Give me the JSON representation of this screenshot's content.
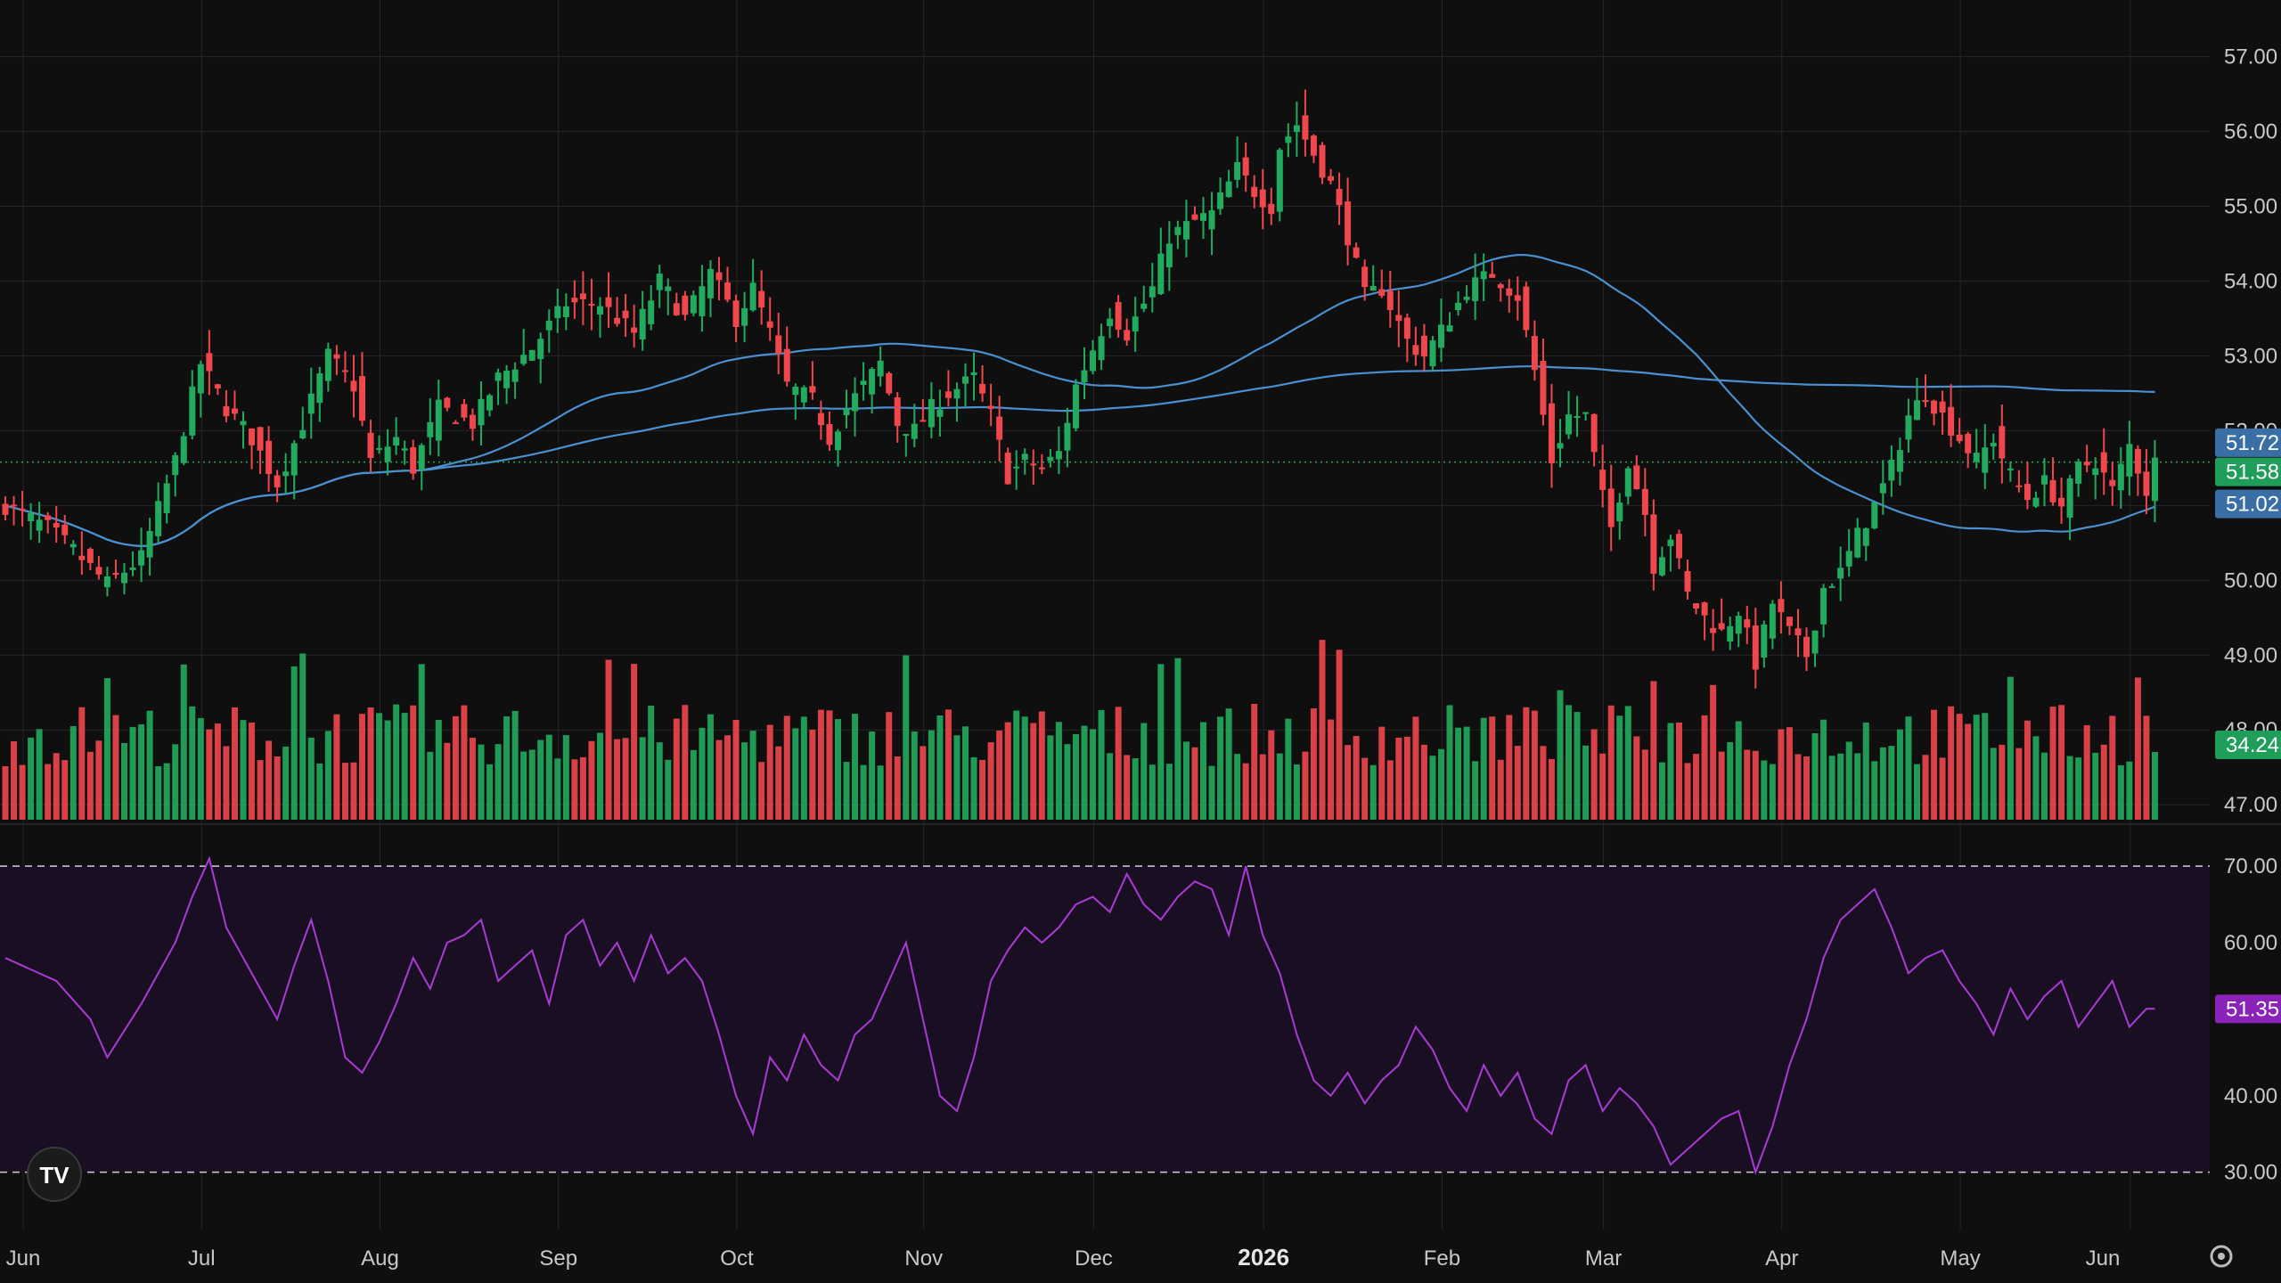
{
  "app": {
    "logo_text": "TV"
  },
  "chart_data": [
    {
      "type": "candlestick",
      "title": "",
      "ylim": [
        46.8,
        57.4
      ],
      "y_ticks": [
        "57.00",
        "56.00",
        "55.00",
        "54.00",
        "53.00",
        "52.00",
        "51.00",
        "50.00",
        "49.00",
        "48.00",
        "47.00"
      ],
      "x_ticks": [
        "Jun",
        "Jul",
        "Aug",
        "Sep",
        "Oct",
        "Nov",
        "Dec",
        "2026",
        "Feb",
        "Mar",
        "Apr",
        "May",
        "Jun"
      ],
      "bold_x_tick": "2026",
      "price_path": [
        [
          0,
          51.0
        ],
        [
          5,
          50.7
        ],
        [
          8,
          50.4
        ],
        [
          12,
          49.95
        ],
        [
          16,
          50.3
        ],
        [
          20,
          51.6
        ],
        [
          23,
          52.9
        ],
        [
          26,
          52.3
        ],
        [
          29,
          51.9
        ],
        [
          32,
          51.3
        ],
        [
          35,
          52.1
        ],
        [
          38,
          53.0
        ],
        [
          41,
          52.6
        ],
        [
          43,
          51.6
        ],
        [
          46,
          51.9
        ],
        [
          48,
          51.5
        ],
        [
          51,
          52.3
        ],
        [
          55,
          52.1
        ],
        [
          58,
          52.7
        ],
        [
          62,
          53.1
        ],
        [
          66,
          53.7
        ],
        [
          70,
          53.7
        ],
        [
          74,
          53.3
        ],
        [
          77,
          54.0
        ],
        [
          80,
          53.5
        ],
        [
          83,
          54.1
        ],
        [
          86,
          53.5
        ],
        [
          88,
          53.9
        ],
        [
          90,
          53.3
        ],
        [
          92,
          52.6
        ],
        [
          95,
          52.4
        ],
        [
          97,
          51.9
        ],
        [
          99,
          52.3
        ],
        [
          101,
          52.6
        ],
        [
          103,
          52.9
        ],
        [
          105,
          52.1
        ],
        [
          107,
          52.0
        ],
        [
          109,
          52.3
        ],
        [
          111,
          52.5
        ],
        [
          114,
          52.7
        ],
        [
          116,
          52.2
        ],
        [
          118,
          51.4
        ],
        [
          120,
          51.6
        ],
        [
          122,
          51.5
        ],
        [
          124,
          51.7
        ],
        [
          126,
          52.6
        ],
        [
          128,
          53.1
        ],
        [
          130,
          53.6
        ],
        [
          132,
          53.3
        ],
        [
          135,
          53.9
        ],
        [
          137,
          54.6
        ],
        [
          140,
          54.8
        ],
        [
          142,
          54.9
        ],
        [
          145,
          55.5
        ],
        [
          147,
          55.2
        ],
        [
          149,
          55.0
        ],
        [
          150,
          55.8
        ],
        [
          152,
          56.1
        ],
        [
          154,
          55.7
        ],
        [
          156,
          55.3
        ],
        [
          158,
          54.6
        ],
        [
          160,
          53.8
        ],
        [
          162,
          53.9
        ],
        [
          165,
          53.2
        ],
        [
          167,
          53.0
        ],
        [
          170,
          53.5
        ],
        [
          172,
          53.9
        ],
        [
          175,
          54.1
        ],
        [
          178,
          53.8
        ],
        [
          180,
          52.8
        ],
        [
          182,
          51.6
        ],
        [
          184,
          52.2
        ],
        [
          186,
          52.2
        ],
        [
          188,
          51.1
        ],
        [
          189,
          50.7
        ],
        [
          191,
          51.6
        ],
        [
          193,
          50.9
        ],
        [
          194,
          50.2
        ],
        [
          196,
          50.6
        ],
        [
          198,
          49.8
        ],
        [
          200,
          49.5
        ],
        [
          202,
          49.3
        ],
        [
          204,
          49.6
        ],
        [
          206,
          48.9
        ],
        [
          208,
          49.7
        ],
        [
          210,
          49.3
        ],
        [
          212,
          49.0
        ],
        [
          214,
          49.9
        ],
        [
          216,
          50.1
        ],
        [
          218,
          50.6
        ],
        [
          220,
          51.0
        ],
        [
          222,
          51.5
        ],
        [
          224,
          52.2
        ],
        [
          226,
          52.5
        ],
        [
          228,
          52.2
        ],
        [
          230,
          51.9
        ],
        [
          232,
          51.6
        ],
        [
          234,
          51.9
        ],
        [
          236,
          51.4
        ],
        [
          238,
          51.1
        ],
        [
          240,
          51.3
        ],
        [
          242,
          51.0
        ],
        [
          244,
          51.5
        ],
        [
          246,
          51.6
        ],
        [
          248,
          51.2
        ],
        [
          250,
          51.8
        ],
        [
          252,
          51.2
        ],
        [
          253,
          51.58
        ]
      ],
      "last_price": "51.58",
      "sma_fast_label": "51.72",
      "sma_slow_label": "51.02",
      "volume_label": "34.24M",
      "colors": {
        "up": "#22ab5e",
        "down": "#f0474c",
        "ma": "#4a8fd0",
        "bg": "#0f0f0f",
        "grid": "#262626"
      }
    },
    {
      "type": "line",
      "title": "",
      "ylim": [
        26,
        72
      ],
      "y_ticks": [
        "70.00",
        "60.00",
        "40.00",
        "30.00"
      ],
      "upper_band": 70,
      "lower_band": 30,
      "last_value": "51.35",
      "rsi_path": [
        [
          0,
          58
        ],
        [
          6,
          55
        ],
        [
          10,
          50
        ],
        [
          12,
          45
        ],
        [
          16,
          52
        ],
        [
          20,
          60
        ],
        [
          22,
          66
        ],
        [
          24,
          71
        ],
        [
          26,
          62
        ],
        [
          28,
          58
        ],
        [
          30,
          54
        ],
        [
          32,
          50
        ],
        [
          34,
          57
        ],
        [
          36,
          63
        ],
        [
          38,
          55
        ],
        [
          40,
          45
        ],
        [
          42,
          43
        ],
        [
          44,
          47
        ],
        [
          46,
          52
        ],
        [
          48,
          58
        ],
        [
          50,
          54
        ],
        [
          52,
          60
        ],
        [
          54,
          61
        ],
        [
          56,
          63
        ],
        [
          58,
          55
        ],
        [
          60,
          57
        ],
        [
          62,
          59
        ],
        [
          64,
          52
        ],
        [
          66,
          61
        ],
        [
          68,
          63
        ],
        [
          70,
          57
        ],
        [
          72,
          60
        ],
        [
          74,
          55
        ],
        [
          76,
          61
        ],
        [
          78,
          56
        ],
        [
          80,
          58
        ],
        [
          82,
          55
        ],
        [
          84,
          48
        ],
        [
          86,
          40
        ],
        [
          88,
          35
        ],
        [
          90,
          45
        ],
        [
          92,
          42
        ],
        [
          94,
          48
        ],
        [
          96,
          44
        ],
        [
          98,
          42
        ],
        [
          100,
          48
        ],
        [
          102,
          50
        ],
        [
          104,
          55
        ],
        [
          106,
          60
        ],
        [
          108,
          50
        ],
        [
          110,
          40
        ],
        [
          112,
          38
        ],
        [
          114,
          45
        ],
        [
          116,
          55
        ],
        [
          118,
          59
        ],
        [
          120,
          62
        ],
        [
          122,
          60
        ],
        [
          124,
          62
        ],
        [
          126,
          65
        ],
        [
          128,
          66
        ],
        [
          130,
          64
        ],
        [
          132,
          69
        ],
        [
          134,
          65
        ],
        [
          136,
          63
        ],
        [
          138,
          66
        ],
        [
          140,
          68
        ],
        [
          142,
          67
        ],
        [
          144,
          61
        ],
        [
          146,
          70
        ],
        [
          148,
          61
        ],
        [
          150,
          56
        ],
        [
          152,
          48
        ],
        [
          154,
          42
        ],
        [
          156,
          40
        ],
        [
          158,
          43
        ],
        [
          160,
          39
        ],
        [
          162,
          42
        ],
        [
          164,
          44
        ],
        [
          166,
          49
        ],
        [
          168,
          46
        ],
        [
          170,
          41
        ],
        [
          172,
          38
        ],
        [
          174,
          44
        ],
        [
          176,
          40
        ],
        [
          178,
          43
        ],
        [
          180,
          37
        ],
        [
          182,
          35
        ],
        [
          184,
          42
        ],
        [
          186,
          44
        ],
        [
          188,
          38
        ],
        [
          190,
          41
        ],
        [
          192,
          39
        ],
        [
          194,
          36
        ],
        [
          196,
          31
        ],
        [
          198,
          33
        ],
        [
          200,
          35
        ],
        [
          202,
          37
        ],
        [
          204,
          38
        ],
        [
          206,
          30
        ],
        [
          208,
          36
        ],
        [
          210,
          44
        ],
        [
          212,
          50
        ],
        [
          214,
          58
        ],
        [
          216,
          63
        ],
        [
          218,
          65
        ],
        [
          220,
          67
        ],
        [
          222,
          62
        ],
        [
          224,
          56
        ],
        [
          226,
          58
        ],
        [
          228,
          59
        ],
        [
          230,
          55
        ],
        [
          232,
          52
        ],
        [
          234,
          48
        ],
        [
          236,
          54
        ],
        [
          238,
          50
        ],
        [
          240,
          53
        ],
        [
          242,
          55
        ],
        [
          244,
          49
        ],
        [
          246,
          52
        ],
        [
          248,
          55
        ],
        [
          250,
          49
        ],
        [
          252,
          51.35
        ]
      ],
      "colors": {
        "line": "#a93ad6",
        "band_fill": "#1a0f22",
        "band_line": "#d0d0d0"
      }
    }
  ]
}
